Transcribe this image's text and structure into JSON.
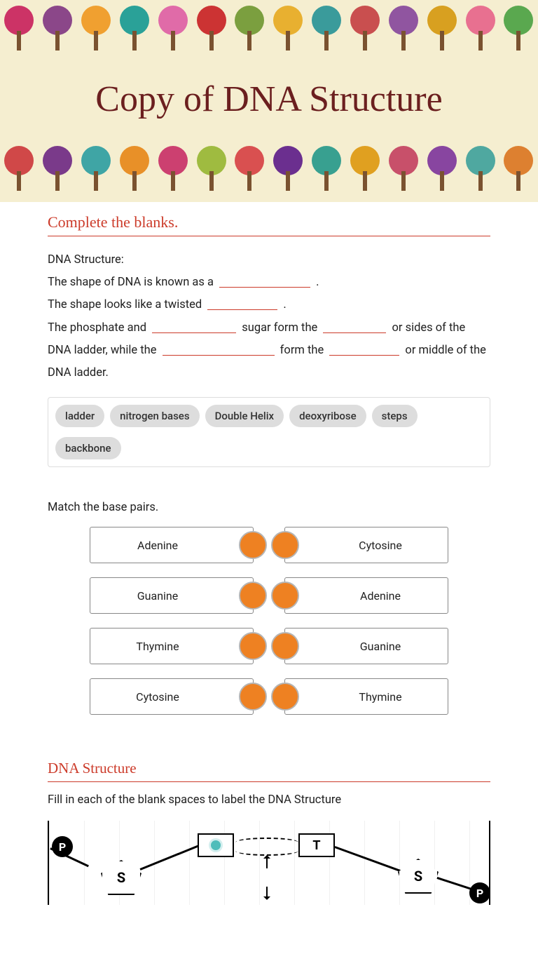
{
  "header": {
    "title": "Copy of DNA Structure",
    "tree_colors": [
      "#cc3366",
      "#8b4789",
      "#f0a030",
      "#2aa198",
      "#e06ba8",
      "#cc3333",
      "#7b9f3f",
      "#e8b030",
      "#3a9b9b",
      "#c94f4f",
      "#9055a0",
      "#d8a020",
      "#e87090",
      "#5aa84f",
      "#d04848",
      "#7a3a8a",
      "#3fa5a5",
      "#e89028",
      "#cc4070",
      "#9fbb40",
      "#d95050",
      "#6b2f8f",
      "#38a090",
      "#e0a020",
      "#c8506a",
      "#8845a0",
      "#4fa8a0",
      "#dd8030"
    ],
    "background_color": "#f5eed0",
    "title_color": "#6b1f1f",
    "title_fontsize": 52
  },
  "section1": {
    "title": "Complete the blanks.",
    "lines": {
      "l0": "DNA Structure:",
      "l1a": "The shape of DNA is known as a ",
      "l1b": " .",
      "l2a": "The shape looks like a twisted ",
      "l2b": " .",
      "l3a": "The phosphate and ",
      "l3b": " sugar form the ",
      "l3c": " or sides of the DNA ladder, while the ",
      "l3d": " form the ",
      "l3e": " or middle of the DNA ladder."
    },
    "blank_widths": [
      130,
      100,
      120,
      90,
      160,
      100
    ],
    "word_bank": [
      "ladder",
      "nitrogen bases",
      "Double Helix",
      "deoxyribose",
      "steps",
      "backbone"
    ],
    "chip_bg": "#dddddd"
  },
  "match": {
    "title": "Match the base pairs.",
    "left": [
      "Adenine",
      "Guanine",
      "Thymine",
      "Cytosine"
    ],
    "right": [
      "Cytosine",
      "Adenine",
      "Guanine",
      "Thymine"
    ],
    "node_color": "#ee8122",
    "node_border": "#b5b5b5"
  },
  "section2": {
    "title": "DNA Structure",
    "subtitle": "Fill in each of the blank spaces to label the DNA Structure",
    "labels": {
      "p": "P",
      "s": "S",
      "t": "T"
    },
    "fill_dot_color": "#4fbdba"
  },
  "accent_color": "#cc3b2a"
}
